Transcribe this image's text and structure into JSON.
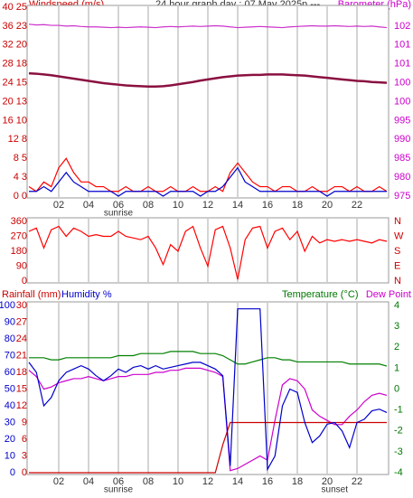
{
  "chart_data": [
    {
      "type": "line",
      "title": "24 hour graph day : 07 May 2025p   ---",
      "y_label": "Windspeed (m/s)",
      "y2_label": "Barometer (hPa)",
      "x": [
        0,
        0.5,
        1,
        1.5,
        2,
        2.5,
        3,
        3.5,
        4,
        4.5,
        5,
        5.5,
        6,
        6.5,
        7,
        7.5,
        8,
        8.5,
        9,
        9.5,
        10,
        10.5,
        11,
        11.5,
        12,
        12.5,
        13,
        13.5,
        14,
        14.5,
        15,
        15.5,
        16,
        16.5,
        17,
        17.5,
        18,
        18.5,
        19,
        19.5,
        20,
        20.5,
        21,
        21.5,
        22,
        22.5,
        23,
        23.5,
        24
      ],
      "xlim": [
        0,
        24
      ],
      "xticks": [
        {
          "value": 2,
          "label": "02"
        },
        {
          "value": 4,
          "label": "04"
        },
        {
          "value": 6,
          "label": "06"
        },
        {
          "value": 8,
          "label": "08"
        },
        10,
        12,
        14,
        16,
        18,
        20,
        22
      ],
      "annotations": [
        {
          "text": "sunrise",
          "x": 6
        }
      ],
      "ylim": [
        0,
        40
      ],
      "yticks": [
        {
          "value": 0,
          "label": "0 0"
        },
        {
          "value": 4,
          "label": "4 3"
        },
        {
          "value": 8,
          "label": "8 5"
        },
        {
          "value": 12,
          "label": "12 8"
        },
        {
          "value": 16,
          "label": "16 10"
        },
        {
          "value": 20,
          "label": "20 13"
        },
        {
          "value": 24,
          "label": "24 15"
        },
        {
          "value": 28,
          "label": "28 18"
        },
        {
          "value": 32,
          "label": "32 20"
        },
        {
          "value": 36,
          "label": "36 23"
        },
        {
          "value": 40,
          "label": "40 25"
        }
      ],
      "y2lim": [
        975,
        1025
      ],
      "y2ticks": [
        975,
        980,
        985,
        990,
        995,
        {
          "value": 1000,
          "label": "100"
        },
        {
          "value": 1005,
          "label": "100"
        },
        {
          "value": 1010,
          "label": "101"
        },
        {
          "value": 1015,
          "label": "101"
        },
        {
          "value": 1020,
          "label": "102"
        }
      ],
      "series": [
        {
          "color": "#8a1040",
          "axis": "y2",
          "values": [
            1007.5,
            1007.4,
            1007.2,
            1007,
            1006.7,
            1006.4,
            1006.1,
            1005.8,
            1005.5,
            1005.2,
            1004.9,
            1004.7,
            1004.5,
            1004.3,
            1004.2,
            1004.1,
            1004,
            1004,
            1004.1,
            1004.3,
            1004.6,
            1004.9,
            1005.2,
            1005.6,
            1005.9,
            1006.2,
            1006.5,
            1006.7,
            1006.9,
            1007,
            1007.1,
            1007.1,
            1007.2,
            1007.2,
            1007.2,
            1007.1,
            1007,
            1006.9,
            1006.7,
            1006.5,
            1006.3,
            1006.1,
            1005.9,
            1005.7,
            1005.5,
            1005.4,
            1005.2,
            1005.1,
            1005
          ]
        },
        {
          "color": "#cc33cc",
          "axis": "y2",
          "values": [
            1020.5,
            1020.3,
            1020.4,
            1020.2,
            1020.2,
            1020,
            1020.1,
            1019.9,
            1019.8,
            1019.8,
            1019.7,
            1019.6,
            1019.7,
            1019.6,
            1019.7,
            1019.8,
            1019.7,
            1019.6,
            1019.8,
            1019.9,
            1019.8,
            1019.9,
            1020,
            1019.9,
            1020,
            1020.1,
            1020,
            1019.8,
            1019.6,
            1019.7,
            1019.8,
            1019.9,
            1019.8,
            1019.7,
            1019.6,
            1019.8,
            1019.9,
            1020,
            1020.1,
            1020,
            1020,
            1020.1,
            1020,
            1019.9,
            1020,
            1019.9,
            1020,
            1019.8,
            1019.6
          ]
        },
        {
          "color": "#ff0000",
          "values": [
            2,
            1,
            3,
            2,
            6,
            8,
            5,
            3,
            3,
            2,
            2,
            1,
            1,
            2,
            1,
            1,
            2,
            1,
            1,
            2,
            1,
            1,
            2,
            1,
            1,
            2,
            1,
            5,
            7,
            5,
            3,
            2,
            2,
            1,
            2,
            2,
            1,
            1,
            2,
            1,
            1,
            2,
            2,
            1,
            2,
            1,
            1,
            2,
            1
          ]
        },
        {
          "color": "#0000cc",
          "values": [
            1,
            1,
            2,
            1,
            3,
            5,
            3,
            2,
            1,
            1,
            1,
            1,
            0,
            1,
            1,
            1,
            1,
            1,
            0,
            1,
            1,
            1,
            1,
            0,
            1,
            1,
            2,
            4,
            6,
            3,
            2,
            1,
            1,
            1,
            1,
            1,
            1,
            1,
            1,
            1,
            0,
            1,
            1,
            1,
            1,
            1,
            1,
            1,
            1
          ]
        }
      ]
    },
    {
      "type": "line",
      "x": [
        0,
        0.5,
        1,
        1.5,
        2,
        2.5,
        3,
        3.5,
        4,
        4.5,
        5,
        5.5,
        6,
        6.5,
        7,
        7.5,
        8,
        8.5,
        9,
        9.5,
        10,
        10.5,
        11,
        11.5,
        12,
        12.5,
        13,
        13.5,
        14,
        14.5,
        15,
        15.5,
        16,
        16.5,
        17,
        17.5,
        18,
        18.5,
        19,
        19.5,
        20,
        20.5,
        21,
        21.5,
        22,
        22.5,
        23,
        23.5,
        24
      ],
      "xlim": [
        0,
        24
      ],
      "ylim": [
        0,
        360
      ],
      "yticks": [
        0,
        90,
        180,
        270,
        360
      ],
      "y2lim": [
        0,
        360
      ],
      "y2ticks": [
        {
          "value": 0,
          "label": "N"
        },
        {
          "value": 90,
          "label": "E"
        },
        {
          "value": 180,
          "label": "S"
        },
        {
          "value": 270,
          "label": "W"
        },
        {
          "value": 360,
          "label": "N"
        }
      ],
      "series": [
        {
          "color": "#ff0000",
          "values": [
            300,
            320,
            200,
            310,
            330,
            270,
            320,
            300,
            270,
            280,
            270,
            270,
            300,
            270,
            260,
            250,
            270,
            200,
            100,
            220,
            180,
            300,
            330,
            200,
            90,
            310,
            330,
            200,
            10,
            250,
            320,
            330,
            200,
            300,
            320,
            250,
            300,
            180,
            270,
            230,
            250,
            240,
            250,
            240,
            250,
            240,
            230,
            250,
            240
          ]
        }
      ]
    },
    {
      "type": "line",
      "y3_label": "Rainfall (mm)",
      "y_label": "Humidity %",
      "y2_label": "Temperature (°C)",
      "y2_label_b": "Dew Point",
      "x": [
        0,
        0.5,
        1,
        1.5,
        2,
        2.5,
        3,
        3.5,
        4,
        4.5,
        5,
        5.5,
        6,
        6.5,
        7,
        7.5,
        8,
        8.5,
        9,
        9.5,
        10,
        10.5,
        11,
        11.5,
        12,
        12.5,
        13,
        13.5,
        14,
        14.5,
        15,
        15.5,
        16,
        16.5,
        17,
        17.5,
        18,
        18.5,
        19,
        19.5,
        20,
        20.5,
        21,
        21.5,
        22,
        22.5,
        23,
        23.5,
        24
      ],
      "xlim": [
        0,
        24
      ],
      "xticks": [
        {
          "value": 2,
          "label": "02"
        },
        {
          "value": 4,
          "label": "04"
        },
        {
          "value": 6,
          "label": "06"
        },
        {
          "value": 8,
          "label": "08"
        },
        10,
        12,
        14,
        16,
        18,
        20,
        22
      ],
      "annotations": [
        {
          "text": "sunrise",
          "x": 6
        },
        {
          "text": "sunset",
          "x": 20.5
        }
      ],
      "ylim": [
        0,
        100
      ],
      "yticks": [
        0,
        10,
        20,
        30,
        40,
        50,
        60,
        70,
        80,
        90,
        100
      ],
      "y3lim": [
        0,
        30
      ],
      "y3ticks": [
        0,
        3,
        6,
        9,
        12,
        15,
        18,
        21,
        24,
        27,
        30
      ],
      "y2lim": [
        -4,
        4
      ],
      "y2ticks": [
        -4,
        -3,
        -2,
        -1,
        0,
        1,
        2,
        3,
        4
      ],
      "series": [
        {
          "color": "#008000",
          "axis": "y2",
          "values": [
            1.5,
            1.5,
            1.5,
            1.4,
            1.4,
            1.5,
            1.5,
            1.5,
            1.5,
            1.5,
            1.5,
            1.5,
            1.6,
            1.6,
            1.6,
            1.7,
            1.7,
            1.7,
            1.7,
            1.8,
            1.8,
            1.8,
            1.8,
            1.7,
            1.7,
            1.7,
            1.6,
            1.4,
            1.2,
            1.2,
            1.3,
            1.4,
            1.5,
            1.5,
            1.4,
            1.4,
            1.3,
            1.3,
            1.3,
            1.3,
            1.3,
            1.3,
            1.3,
            1.2,
            1.2,
            1.2,
            1.2,
            1.2,
            1.1
          ]
        },
        {
          "color": "#cc00cc",
          "axis": "y2",
          "values": [
            0.9,
            0.6,
            0,
            0.1,
            0.3,
            0.4,
            0.5,
            0.5,
            0.6,
            0.5,
            0.4,
            0.5,
            0.6,
            0.6,
            0.7,
            0.7,
            0.7,
            0.8,
            0.8,
            0.9,
            0.9,
            1,
            1,
            1,
            0.9,
            0.8,
            0.6,
            -3.9,
            -3.8,
            -3.6,
            -3.4,
            -3.2,
            -3.4,
            -1.5,
            0.2,
            0.5,
            0.4,
            0,
            -1,
            -1.3,
            -1.5,
            -1.7,
            -1.7,
            -1.3,
            -1,
            -0.6,
            -0.3,
            -0.2,
            -0.3
          ]
        },
        {
          "color": "#cc0000",
          "axis": "y3",
          "values": [
            0,
            0,
            0,
            0,
            0,
            0,
            0,
            0,
            0,
            0,
            0,
            0,
            0,
            0,
            0,
            0,
            0,
            0,
            0,
            0,
            0,
            0,
            0,
            0,
            0,
            0,
            5,
            9,
            9,
            9,
            9,
            9,
            9,
            9,
            9,
            9,
            9,
            9,
            9,
            9,
            9,
            9,
            9,
            9,
            9,
            9,
            9,
            9,
            9
          ]
        },
        {
          "color": "#0000cc",
          "values": [
            66,
            60,
            40,
            45,
            55,
            60,
            62,
            64,
            62,
            58,
            55,
            58,
            62,
            60,
            63,
            64,
            62,
            64,
            62,
            63,
            64,
            65,
            66,
            66,
            64,
            62,
            58,
            4,
            98,
            98,
            98,
            98,
            2,
            10,
            40,
            50,
            48,
            30,
            18,
            22,
            29,
            30,
            25,
            15,
            30,
            32,
            37,
            38,
            36
          ]
        }
      ]
    }
  ]
}
